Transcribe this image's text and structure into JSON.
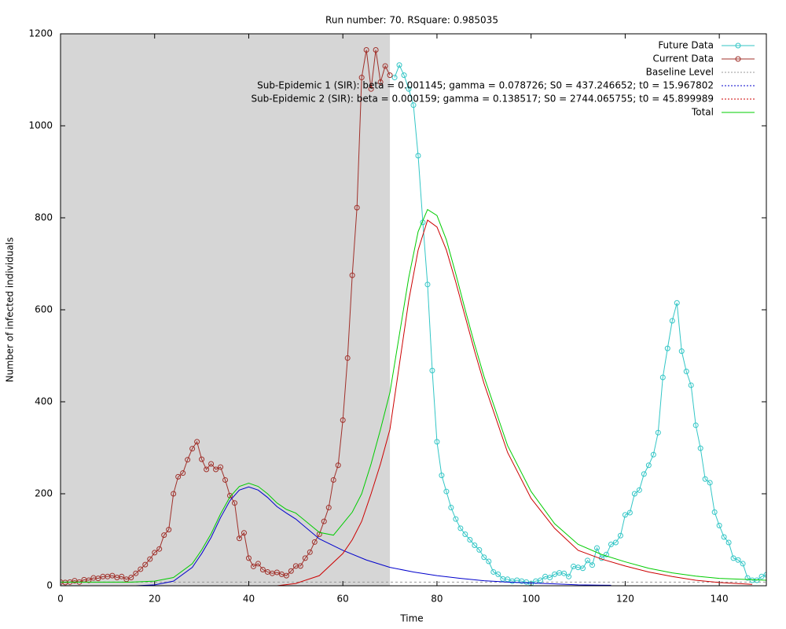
{
  "chart_data": {
    "type": "line",
    "title": "Run number: 70. RSquare: 0.985035",
    "xlabel": "Time",
    "ylabel": "Number of infected individuals",
    "xlim": [
      0,
      150
    ],
    "ylim": [
      0,
      1200
    ],
    "xticks": [
      0,
      20,
      40,
      60,
      80,
      100,
      120,
      140
    ],
    "yticks": [
      0,
      200,
      400,
      600,
      800,
      1000,
      1200
    ],
    "highlight": [
      0,
      70
    ],
    "highlight_color": "#d6d6d6",
    "legend": "upper right",
    "baseline": {
      "name": "Baseline Level",
      "value": 8,
      "color": "#999999"
    },
    "series": [
      {
        "name": "Future Data",
        "color": "#33c6c6",
        "style": "linespoints",
        "x": [
          71,
          72,
          73,
          74,
          75,
          76,
          77,
          78,
          79,
          80,
          81,
          82,
          83,
          84,
          85,
          86,
          87,
          88,
          89,
          90,
          91,
          92,
          93,
          94,
          95,
          96,
          97,
          98,
          99,
          100,
          101,
          102,
          103,
          104,
          105,
          106,
          107,
          108,
          109,
          110,
          111,
          112,
          113,
          114,
          115,
          116,
          117,
          118,
          119,
          120,
          121,
          122,
          123,
          124,
          125,
          126,
          127,
          128,
          129,
          130,
          131,
          132,
          133,
          134,
          135,
          136,
          137,
          138,
          139,
          140,
          141,
          142,
          143,
          144,
          145,
          146,
          147,
          148,
          149,
          150
        ],
        "values": [
          1105,
          1132,
          1110,
          1080,
          1045,
          935,
          790,
          655,
          468,
          313,
          240,
          205,
          170,
          145,
          125,
          112,
          100,
          88,
          78,
          62,
          53,
          30,
          25,
          15,
          14,
          10,
          12,
          10,
          8,
          5,
          10,
          12,
          20,
          18,
          25,
          28,
          27,
          20,
          42,
          40,
          38,
          55,
          45,
          82,
          60,
          68,
          90,
          94,
          109,
          154,
          159,
          200,
          208,
          243,
          262,
          285,
          333,
          453,
          516,
          576,
          615,
          510,
          466,
          436,
          349,
          299,
          232,
          224,
          160,
          131,
          106,
          94,
          60,
          56,
          48,
          17,
          12,
          12,
          20,
          24
        ]
      },
      {
        "name": "Current Data",
        "color": "#a0302a",
        "style": "linespoints",
        "x": [
          0,
          1,
          2,
          3,
          4,
          5,
          6,
          7,
          8,
          9,
          10,
          11,
          12,
          13,
          14,
          15,
          16,
          17,
          18,
          19,
          20,
          21,
          22,
          23,
          24,
          25,
          26,
          27,
          28,
          29,
          30,
          31,
          32,
          33,
          34,
          35,
          36,
          37,
          38,
          39,
          40,
          41,
          42,
          43,
          44,
          45,
          46,
          47,
          48,
          49,
          50,
          51,
          52,
          53,
          54,
          55,
          56,
          57,
          58,
          59,
          60,
          61,
          62,
          63,
          64,
          65,
          66,
          67,
          68,
          69,
          70
        ],
        "values": [
          8,
          7,
          8,
          11,
          8,
          13,
          12,
          17,
          16,
          20,
          20,
          22,
          18,
          20,
          14,
          18,
          27,
          36,
          46,
          58,
          72,
          80,
          110,
          122,
          200,
          237,
          245,
          274,
          298,
          313,
          275,
          253,
          265,
          253,
          258,
          230,
          196,
          180,
          103,
          115,
          60,
          42,
          48,
          35,
          30,
          27,
          29,
          25,
          22,
          32,
          43,
          43,
          60,
          73,
          95,
          112,
          140,
          170,
          230,
          262,
          360,
          495,
          675,
          822,
          1105,
          1165,
          1080,
          1165,
          1095,
          1130,
          1110
        ]
      },
      {
        "name": "Sub-Epidemic 1 (SIR): beta = 0.001145; gamma = 0.078726; S0 = 437.246652; t0 = 15.967802",
        "color": "#0000cc",
        "style": "lines",
        "legend_dash": true,
        "x": [
          16,
          20,
          24,
          28,
          30,
          32,
          34,
          36,
          38,
          40,
          42,
          44,
          46,
          48,
          50,
          55,
          60,
          65,
          70,
          75,
          80,
          85,
          90,
          95,
          100,
          105,
          110,
          117
        ],
        "values": [
          0,
          2,
          10,
          40,
          70,
          105,
          148,
          185,
          208,
          215,
          208,
          192,
          172,
          158,
          145,
          102,
          77,
          56,
          40,
          30,
          22,
          16,
          11,
          8,
          6,
          4,
          2,
          1
        ]
      },
      {
        "name": "Sub-Epidemic 2 (SIR): beta = 0.000159; gamma = 0.138517; S0 = 2744.065755; t0 = 45.899989",
        "color": "#cc0000",
        "style": "lines",
        "legend_dash": true,
        "x": [
          46,
          50,
          55,
          60,
          62,
          64,
          66,
          68,
          70,
          72,
          74,
          76,
          78,
          80,
          82,
          84,
          86,
          88,
          90,
          95,
          100,
          105,
          110,
          115,
          120,
          125,
          130,
          135,
          140,
          147
        ],
        "values": [
          0,
          5,
          22,
          70,
          100,
          140,
          200,
          265,
          340,
          480,
          620,
          730,
          795,
          780,
          730,
          660,
          585,
          510,
          440,
          290,
          190,
          125,
          77,
          58,
          43,
          30,
          20,
          12,
          7,
          3
        ]
      },
      {
        "name": "Total",
        "color": "#00cc00",
        "style": "lines",
        "x": [
          0,
          5,
          10,
          15,
          20,
          24,
          28,
          30,
          32,
          34,
          36,
          38,
          40,
          42,
          44,
          46,
          48,
          50,
          55,
          58,
          60,
          62,
          64,
          66,
          68,
          70,
          72,
          74,
          76,
          78,
          80,
          82,
          84,
          86,
          88,
          90,
          95,
          100,
          105,
          110,
          115,
          120,
          125,
          130,
          135,
          140,
          150
        ],
        "values": [
          8,
          8,
          8,
          8,
          10,
          18,
          48,
          78,
          113,
          156,
          193,
          216,
          223,
          216,
          200,
          180,
          166,
          158,
          116,
          110,
          135,
          160,
          200,
          265,
          340,
          420,
          545,
          670,
          770,
          818,
          805,
          752,
          678,
          600,
          525,
          455,
          305,
          205,
          135,
          90,
          68,
          52,
          38,
          28,
          21,
          16,
          12
        ]
      }
    ]
  }
}
